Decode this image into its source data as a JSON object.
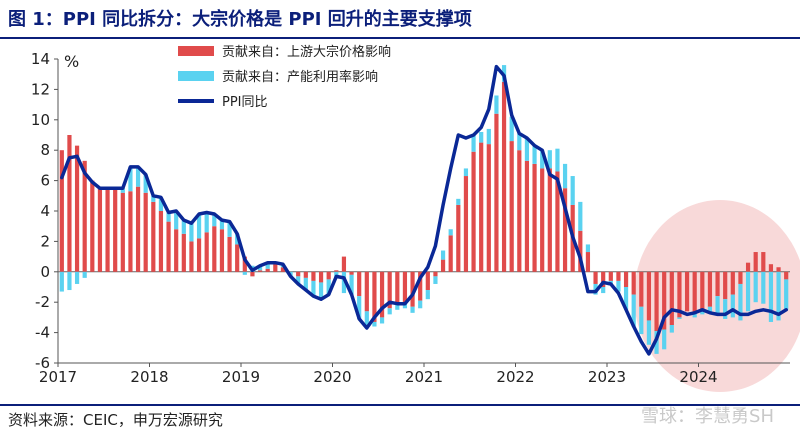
{
  "header": {
    "title": "图 1：PPI 同比拆分：大宗价格是 PPI 回升的主要支撑项"
  },
  "footer": {
    "source": "资料来源：CEIC，申万宏源研究",
    "watermark": "雪球：李慧勇SH"
  },
  "colors": {
    "title": "#0b1f7a",
    "bulk": "#e04b4b",
    "other": "#5ad2f0",
    "ppi": "#0a2896",
    "highlight": "#f7d2d2"
  },
  "chart_data": {
    "type": "bar+line",
    "unit_label": "%",
    "ylim": [
      -6,
      14
    ],
    "yticks": [
      -6,
      -4,
      -2,
      0,
      2,
      4,
      6,
      8,
      10,
      12,
      14
    ],
    "year_labels": [
      "2017",
      "2018",
      "2019",
      "2020",
      "2021",
      "2022",
      "2023",
      "2024"
    ],
    "x_start": "2017-01",
    "x_end": "2024-10",
    "legend": [
      {
        "name": "贡献来自：上游大宗价格影响",
        "kind": "bar",
        "color": "#e04b4b"
      },
      {
        "name": "贡献来自：产能利用率影响",
        "kind": "bar",
        "color": "#5ad2f0"
      },
      {
        "name": "PPI同比",
        "kind": "line",
        "color": "#0a2896"
      }
    ],
    "series": [
      {
        "name": "贡献来自：上游大宗价格影响",
        "values": [
          8.0,
          9.0,
          8.3,
          7.3,
          6.0,
          5.5,
          5.4,
          5.4,
          5.2,
          5.3,
          5.6,
          5.2,
          4.6,
          4.0,
          3.3,
          2.8,
          2.5,
          2.0,
          2.2,
          2.6,
          3.0,
          2.8,
          2.3,
          1.8,
          1.0,
          -0.3,
          0.1,
          0.2,
          0.5,
          0.3,
          0.0,
          -0.3,
          -0.4,
          -0.6,
          -0.7,
          -0.5,
          0.1,
          1.0,
          -0.2,
          -1.6,
          -2.6,
          -3.3,
          -3.0,
          -2.4,
          -2.1,
          -2.0,
          -2.3,
          -1.9,
          -1.2,
          -0.3,
          0.8,
          2.4,
          4.4,
          6.3,
          7.9,
          8.5,
          8.4,
          10.4,
          12.5,
          8.6,
          8.0,
          7.3,
          7.1,
          6.8,
          6.8,
          6.6,
          5.5,
          4.4,
          2.7,
          1.3,
          -0.8,
          -1.0,
          -0.6,
          -0.6,
          -1.0,
          -1.5,
          -2.3,
          -3.2,
          -3.9,
          -3.8,
          -3.5,
          -3.0,
          -2.6,
          -2.7,
          -2.5,
          -2.3,
          -1.6,
          -1.8,
          -1.5,
          -0.8,
          0.6,
          1.3,
          1.3,
          0.5,
          0.3,
          -0.5
        ]
      },
      {
        "name": "贡献来自：产能利用率影响",
        "values": [
          -1.3,
          -1.2,
          -0.8,
          -0.4,
          0.0,
          0.0,
          0.1,
          0.1,
          0.3,
          1.6,
          1.3,
          1.2,
          0.4,
          0.9,
          0.6,
          1.2,
          0.9,
          1.2,
          1.6,
          1.3,
          0.8,
          0.6,
          1.0,
          0.7,
          -0.2,
          0.4,
          0.3,
          0.4,
          0.1,
          0.2,
          -0.3,
          -0.5,
          -0.8,
          -1.0,
          -1.1,
          -1.0,
          -0.4,
          -1.4,
          -1.3,
          -1.5,
          -1.1,
          -0.3,
          -0.4,
          -0.4,
          -0.4,
          -0.4,
          -0.4,
          -0.5,
          -0.6,
          -0.5,
          0.6,
          0.4,
          0.4,
          0.5,
          1.1,
          0.7,
          1.0,
          1.2,
          1.1,
          1.6,
          1.1,
          1.5,
          1.2,
          1.2,
          1.2,
          1.5,
          1.6,
          1.9,
          1.9,
          0.5,
          -0.7,
          -0.4,
          -0.3,
          -0.7,
          -1.5,
          -2.1,
          -1.8,
          -1.6,
          -1.5,
          -1.3,
          -0.5,
          -0.1,
          0.0,
          -0.3,
          -0.3,
          -0.4,
          -1.2,
          -1.3,
          -1.5,
          -2.4,
          -2.6,
          -2.0,
          -2.1,
          -3.3,
          -3.2,
          -2.0
        ]
      },
      {
        "name": "PPI同比",
        "values": [
          6.2,
          7.5,
          7.6,
          6.5,
          5.9,
          5.5,
          5.5,
          5.5,
          5.5,
          6.9,
          6.9,
          6.4,
          5.0,
          4.9,
          3.9,
          4.0,
          3.4,
          3.2,
          3.8,
          3.9,
          3.8,
          3.4,
          3.3,
          2.5,
          0.8,
          0.1,
          0.4,
          0.6,
          0.6,
          0.5,
          -0.3,
          -0.8,
          -1.2,
          -1.6,
          -1.8,
          -1.5,
          -0.3,
          -0.4,
          -1.5,
          -3.1,
          -3.7,
          -3.0,
          -2.4,
          -2.0,
          -2.1,
          -2.1,
          -1.5,
          -0.4,
          0.3,
          1.7,
          4.4,
          6.8,
          9.0,
          8.8,
          9.0,
          9.5,
          10.7,
          13.5,
          12.9,
          10.3,
          9.1,
          8.8,
          8.3,
          8.0,
          6.4,
          6.1,
          4.2,
          2.3,
          0.9,
          -1.3,
          -1.3,
          -0.7,
          -0.8,
          -1.4,
          -2.5,
          -3.6,
          -4.6,
          -5.4,
          -4.4,
          -3.0,
          -2.5,
          -2.6,
          -2.8,
          -2.7,
          -2.5,
          -2.7,
          -2.8,
          -2.8,
          -2.5,
          -2.8,
          -2.8,
          -2.6,
          -2.5,
          -2.6,
          -2.8,
          -2.5
        ]
      }
    ]
  }
}
